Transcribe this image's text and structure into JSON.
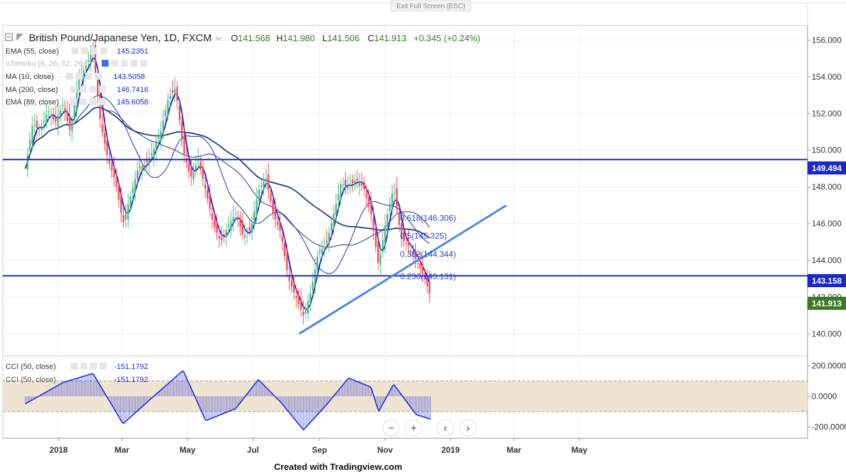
{
  "top_button": "Exit Full Screen (ESC)",
  "header": {
    "symbol": "British Pound/Japanese Yen, 1D, FXCM",
    "open_label": "O",
    "open": "141.568",
    "high_label": "H",
    "high": "141.980",
    "low_label": "L",
    "low": "141.506",
    "close_label": "C",
    "close": "141.913",
    "change": "+0.345 (+0.24%)"
  },
  "indicators": [
    {
      "name": "EMA (55, close)",
      "value": "145.2351"
    },
    {
      "name": "Ichimoku (9, 26, 52, 26)",
      "value": ""
    },
    {
      "name": "MA (10, close)",
      "value": "143.5058"
    },
    {
      "name": "MA (200, close)",
      "value": "146.7416"
    },
    {
      "name": "EMA (89, close)",
      "value": "145.6058"
    }
  ],
  "cci_indicators": [
    {
      "name": "CCI (50, close)",
      "value": "-151.1792"
    },
    {
      "name": "CCI (50, close)",
      "value": "-151.1792"
    }
  ],
  "price_labels": {
    "resistance": "149.494",
    "support": "143.158",
    "last": "141.913"
  },
  "fib_labels": [
    "0.618(146.306)",
    "0.5(145.325)",
    "0.382(144.344)",
    "0.236(143.131)"
  ],
  "nav_buttons": [
    "−",
    "+",
    "‹",
    "›"
  ],
  "footer": "Created with Tradingview.com",
  "colors": {
    "up": "#53b987",
    "down": "#eb4d5c",
    "level": "#1a28c8",
    "trend": "#4a86e8",
    "ma10": "#1515d0",
    "cci": "#1f2dd8",
    "band": "#efe4d2"
  },
  "chart_data": {
    "type": "line",
    "price_axis": {
      "ticks": [
        140,
        142,
        144,
        146,
        148,
        150,
        152,
        154,
        156
      ],
      "tick_labels": [
        "140.000",
        "142.000",
        "144.000",
        "146.000",
        "148.000",
        "150.000",
        "152.000",
        "154.000",
        "156.000"
      ],
      "range": [
        138.8,
        156.8
      ]
    },
    "cci_axis": {
      "ticks": [
        -200,
        0,
        200
      ],
      "tick_labels": [
        "-200.0000",
        "0.0000",
        "200.0000"
      ],
      "range": [
        -275,
        265
      ],
      "band": [
        -100,
        100
      ]
    },
    "time_axis": {
      "labels": [
        "2018",
        "Mar",
        "May",
        "Jul",
        "Sep",
        "Nov",
        "2019",
        "Mar",
        "May"
      ]
    },
    "horizontal_levels": [
      149.494,
      143.158
    ],
    "trendline": {
      "from": [
        "2018-08-13",
        140.0
      ],
      "to": [
        "2019-02-22",
        147.0
      ]
    },
    "fibonacci": [
      {
        "ratio": "0.618",
        "value": 146.306
      },
      {
        "ratio": "0.5",
        "value": 145.325
      },
      {
        "ratio": "0.382",
        "value": 144.344
      },
      {
        "ratio": "0.236",
        "value": 143.131
      }
    ],
    "price_series": {
      "name": "GBP/JPY 1D close (approx.)",
      "dates": [
        "2017-12-01",
        "2017-12-08",
        "2017-12-15",
        "2017-12-22",
        "2017-12-29",
        "2018-01-05",
        "2018-01-12",
        "2018-01-19",
        "2018-01-26",
        "2018-02-02",
        "2018-02-09",
        "2018-02-16",
        "2018-02-23",
        "2018-03-02",
        "2018-03-09",
        "2018-03-16",
        "2018-03-23",
        "2018-03-30",
        "2018-04-06",
        "2018-04-13",
        "2018-04-20",
        "2018-04-27",
        "2018-05-04",
        "2018-05-11",
        "2018-05-18",
        "2018-05-25",
        "2018-06-01",
        "2018-06-08",
        "2018-06-15",
        "2018-06-22",
        "2018-06-29",
        "2018-07-06",
        "2018-07-13",
        "2018-07-20",
        "2018-07-27",
        "2018-08-03",
        "2018-08-10",
        "2018-08-17",
        "2018-08-24",
        "2018-08-31",
        "2018-09-07",
        "2018-09-14",
        "2018-09-21",
        "2018-09-28",
        "2018-10-05",
        "2018-10-12",
        "2018-10-19",
        "2018-10-26",
        "2018-11-02",
        "2018-11-09",
        "2018-11-16",
        "2018-11-23",
        "2018-11-30",
        "2018-12-07",
        "2018-12-14"
      ],
      "values": [
        149.0,
        151.5,
        151.0,
        152.2,
        151.5,
        152.5,
        151.0,
        153.8,
        154.5,
        155.5,
        151.5,
        149.5,
        148.3,
        146.0,
        147.5,
        149.0,
        149.2,
        150.0,
        151.0,
        152.8,
        153.4,
        150.0,
        148.5,
        149.5,
        147.8,
        146.0,
        145.0,
        145.9,
        146.6,
        145.3,
        145.7,
        147.8,
        148.5,
        146.5,
        145.5,
        143.0,
        142.0,
        141.0,
        142.3,
        144.5,
        144.8,
        146.5,
        148.2,
        148.0,
        148.4,
        148.0,
        146.5,
        143.7,
        146.2,
        148.0,
        145.2,
        144.8,
        144.0,
        143.2,
        141.9
      ]
    },
    "cci_series": {
      "dates": [
        "2017-12-01",
        "2018-01-05",
        "2018-02-02",
        "2018-03-02",
        "2018-04-06",
        "2018-04-27",
        "2018-05-18",
        "2018-06-15",
        "2018-07-06",
        "2018-07-27",
        "2018-08-17",
        "2018-09-07",
        "2018-09-28",
        "2018-10-19",
        "2018-10-26",
        "2018-11-09",
        "2018-11-30",
        "2018-12-14"
      ],
      "values": [
        -50,
        90,
        150,
        -180,
        40,
        170,
        -160,
        -80,
        110,
        -40,
        -220,
        -60,
        120,
        60,
        -100,
        80,
        -120,
        -151.18
      ]
    }
  }
}
